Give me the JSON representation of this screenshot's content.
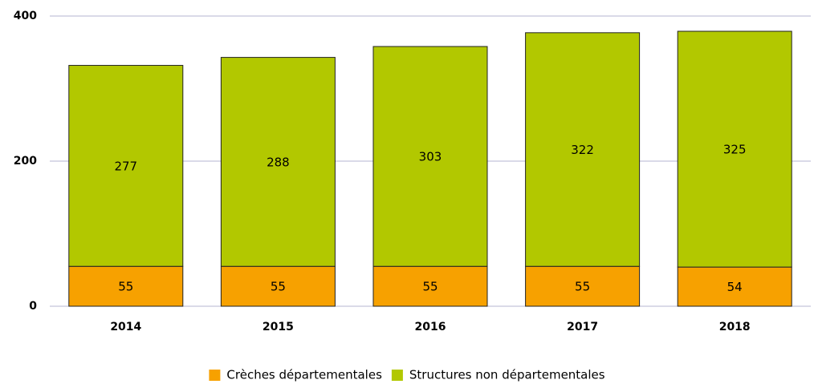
{
  "chart_data": {
    "type": "stacked_bar",
    "categories": [
      "2014",
      "2015",
      "2016",
      "2017",
      "2018"
    ],
    "series": [
      {
        "name": "Crèches départementales",
        "color": "#f7a100",
        "values": [
          55,
          55,
          55,
          55,
          54
        ]
      },
      {
        "name": "Structures non départementales",
        "color": "#b2c800",
        "values": [
          277,
          288,
          303,
          322,
          325
        ]
      }
    ],
    "ylim": [
      0,
      400
    ],
    "yticks": [
      0,
      200,
      400
    ],
    "grid": true,
    "legend": "bottom"
  }
}
